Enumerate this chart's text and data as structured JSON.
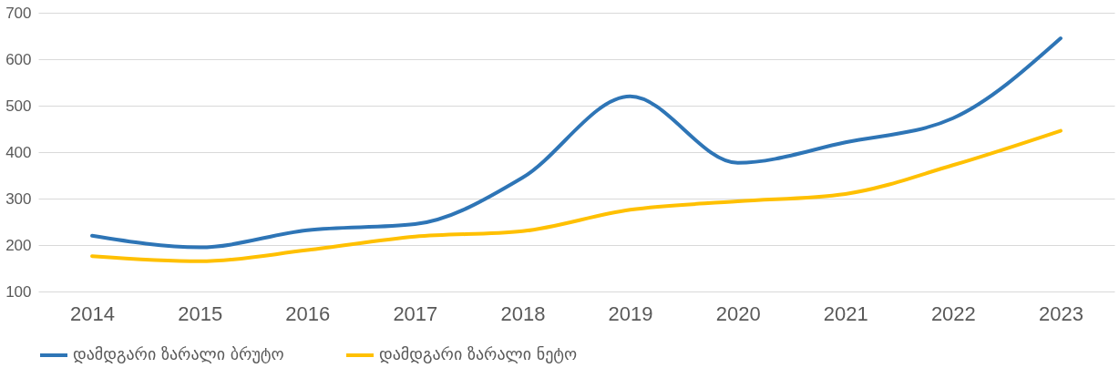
{
  "chart_data": {
    "type": "line",
    "categories": [
      "2014",
      "2015",
      "2016",
      "2017",
      "2018",
      "2019",
      "2020",
      "2021",
      "2022",
      "2023"
    ],
    "series": [
      {
        "name": "დამდგარი ზარალი ბრუტო",
        "color": "#2e75b6",
        "values": [
          220,
          195,
          232,
          245,
          345,
          520,
          377,
          421,
          473,
          645
        ]
      },
      {
        "name": "დამდგარი ზარალი ნეტო",
        "color": "#ffc000",
        "values": [
          176,
          165,
          189,
          218,
          230,
          276,
          294,
          310,
          372,
          446
        ]
      }
    ],
    "ylim": [
      100,
      700
    ],
    "yticks": [
      100,
      200,
      300,
      400,
      500,
      600,
      700
    ],
    "grid": "y",
    "legend": "bottom",
    "marker": "none",
    "line_style": "solid"
  }
}
